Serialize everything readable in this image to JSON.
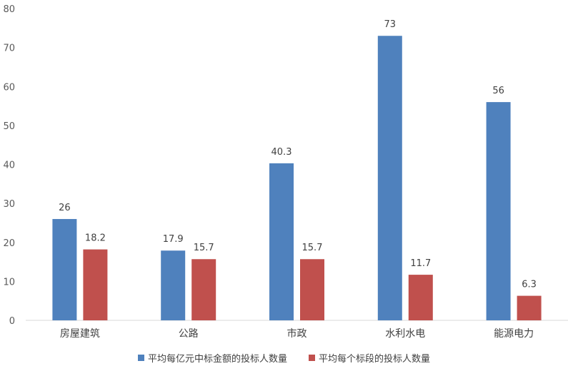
{
  "chart_data": {
    "type": "bar",
    "categories": [
      "房屋建筑",
      "公路",
      "市政",
      "水利水电",
      "能源电力"
    ],
    "series": [
      {
        "name": "平均每亿元中标金额的投标人数量",
        "values": [
          26,
          17.9,
          40.3,
          73,
          56
        ],
        "labels": [
          "26",
          "17.9",
          "40.3",
          "73",
          "56"
        ],
        "color": "#4F81BD"
      },
      {
        "name": "平均每个标段的投标人数量",
        "values": [
          18.2,
          15.7,
          15.7,
          11.7,
          6.3
        ],
        "labels": [
          "18.2",
          "15.7",
          "15.7",
          "11.7",
          "6.3"
        ],
        "color": "#C0504D"
      }
    ],
    "ylim": [
      0,
      80
    ],
    "yticks": [
      "0",
      "10",
      "20",
      "30",
      "40",
      "50",
      "60",
      "70",
      "80"
    ],
    "grid": false,
    "legend_position": "bottom"
  }
}
